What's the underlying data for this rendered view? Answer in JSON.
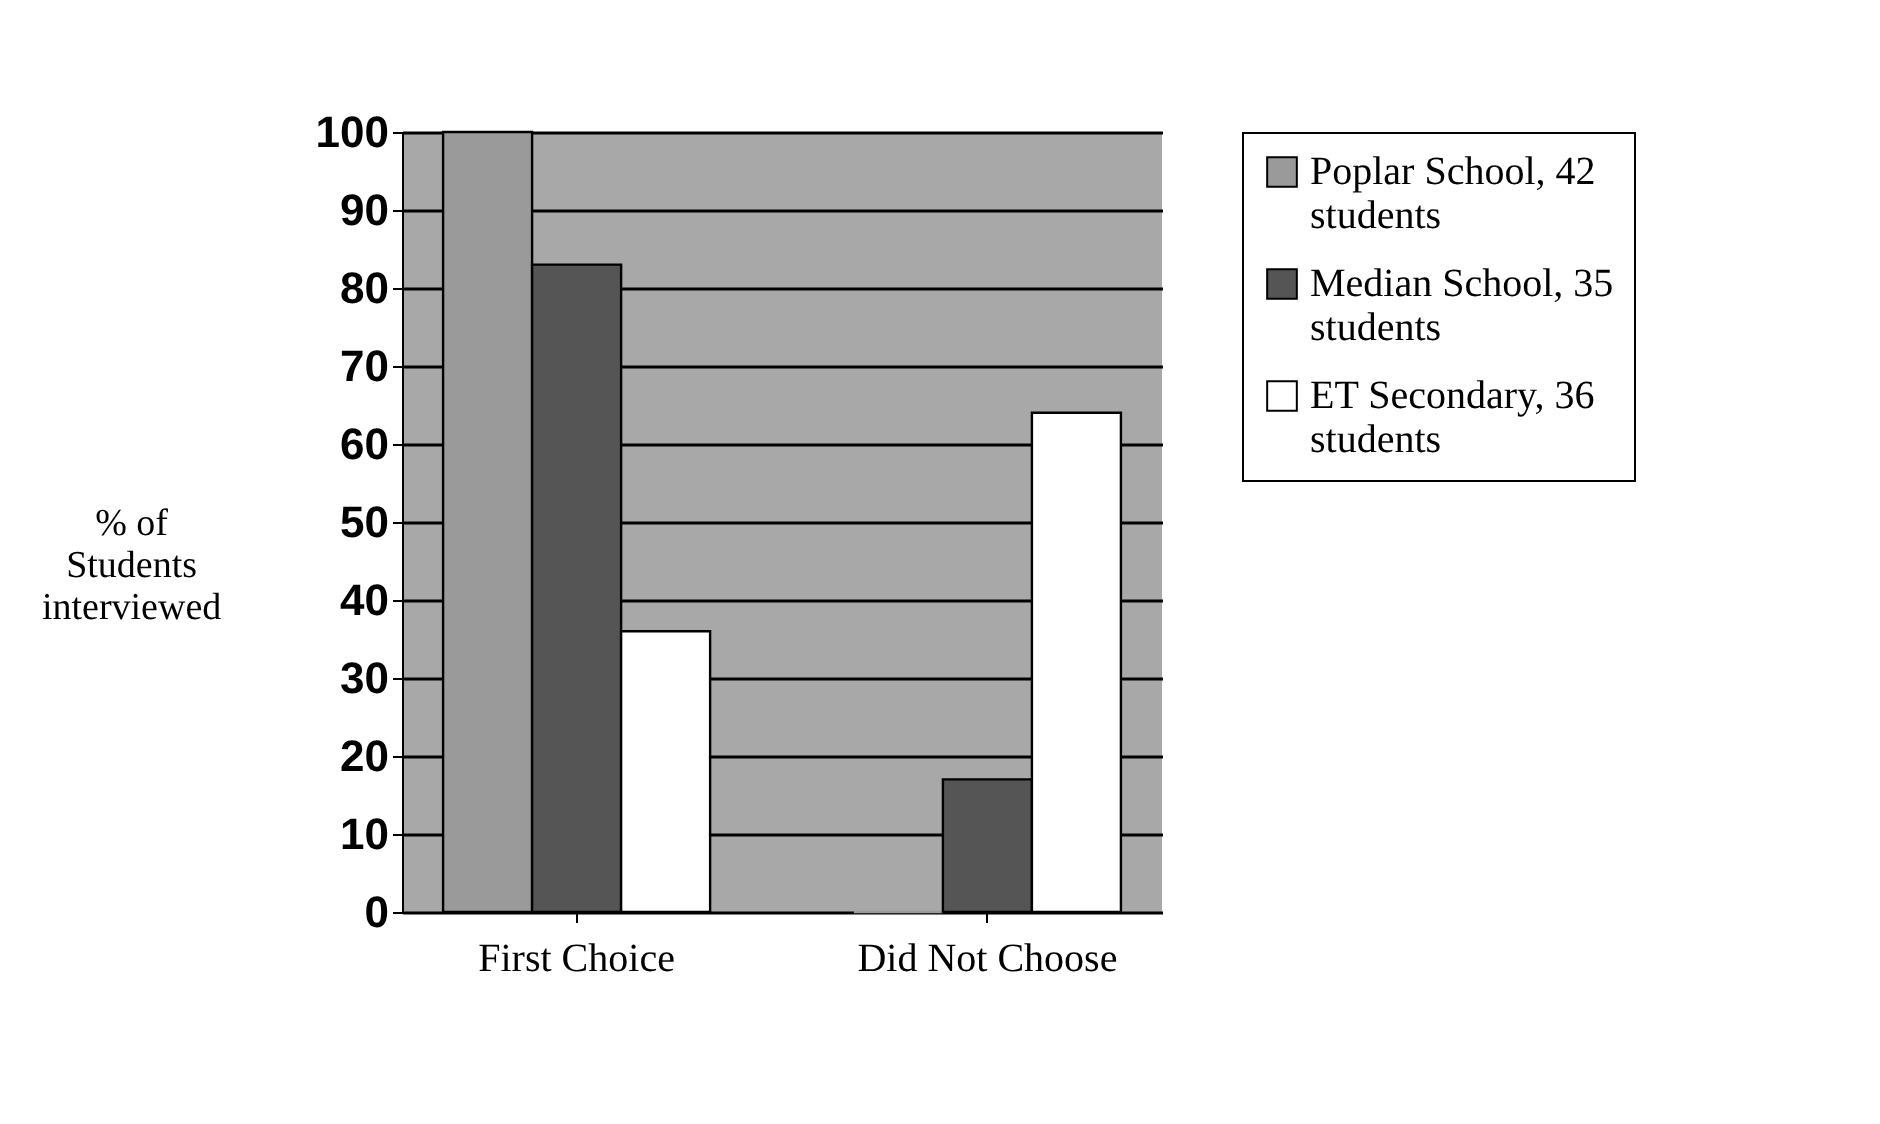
{
  "chart_data": {
    "type": "bar",
    "ylabel": "% of Students interviewed",
    "categories": [
      "First Choice",
      "Did Not Choose"
    ],
    "series": [
      {
        "name": "Poplar School, 42 students",
        "color": "#9a9a9a",
        "values": [
          100,
          0
        ]
      },
      {
        "name": "Median School, 35 students",
        "color": "#555555",
        "values": [
          83,
          17
        ]
      },
      {
        "name": "ET Secondary, 36 students",
        "color": "#ffffff",
        "values": [
          36,
          64
        ]
      }
    ],
    "ylim": [
      0,
      100
    ],
    "yticks": [
      0,
      10,
      20,
      30,
      40,
      50,
      60,
      70,
      80,
      90,
      100
    ],
    "grid": "y",
    "legend": "right"
  }
}
